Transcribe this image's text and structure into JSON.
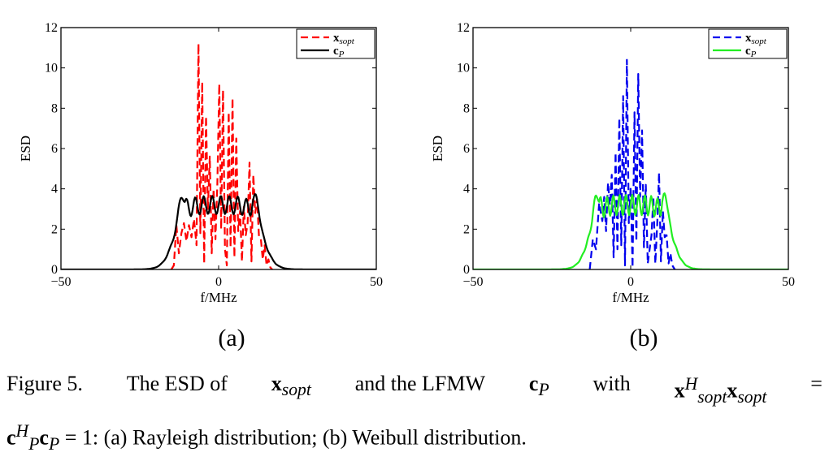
{
  "chart_data": [
    {
      "type": "line",
      "subfigure_label": "(a)",
      "xlabel": "f/MHz",
      "ylabel": "ESD",
      "xlim": [
        -50,
        50
      ],
      "ylim": [
        0,
        12
      ],
      "xticks": [
        "−50",
        "0",
        "50"
      ],
      "yticks": [
        "0",
        "2",
        "4",
        "6",
        "8",
        "10",
        "12"
      ],
      "grid": false,
      "legend_position": "top-right",
      "series": [
        {
          "name": "x_sopt",
          "legend_main": "x",
          "legend_sub": "sopt",
          "color": "#ff0000",
          "style": "dashed",
          "x": [
            -15.0,
            -14.2,
            -13.4,
            -12.6,
            -11.8,
            -11.0,
            -10.2,
            -9.4,
            -8.6,
            -7.8,
            -7.0,
            -6.4,
            -5.8,
            -5.2,
            -4.6,
            -4.0,
            -3.4,
            -2.8,
            -2.2,
            -1.6,
            -1.0,
            -0.4,
            0.2,
            0.8,
            1.4,
            2.0,
            2.6,
            3.2,
            3.8,
            4.4,
            5.0,
            5.6,
            6.2,
            6.8,
            7.4,
            8.0,
            8.6,
            9.2,
            9.8,
            10.4,
            11.0,
            11.6,
            12.2,
            12.8,
            13.4,
            14.0,
            14.6,
            15.2,
            15.8,
            16.4,
            17.0
          ],
          "values": [
            0.0,
            0.2,
            2.2,
            0.8,
            1.8,
            2.3,
            1.4,
            2.2,
            1.6,
            2.5,
            1.2,
            11.2,
            1.8,
            9.3,
            0.3,
            7.6,
            3.0,
            5.6,
            0.8,
            4.0,
            1.5,
            4.2,
            9.2,
            2.0,
            8.9,
            1.0,
            0.2,
            7.8,
            1.1,
            8.5,
            0.6,
            6.5,
            1.9,
            2.9,
            0.4,
            3.1,
            1.7,
            2.3,
            5.3,
            0.4,
            4.7,
            2.8,
            3.5,
            1.6,
            1.5,
            0.5,
            1.2,
            0.2,
            0.5,
            0.1,
            0.0
          ]
        },
        {
          "name": "c_P",
          "legend_main": "c",
          "legend_sub": "P",
          "color": "#000000",
          "style": "solid",
          "envelope": {
            "center": 0,
            "half_width": 14.2,
            "edge_sharpness": 1.7,
            "base_level": 3.2,
            "edge_peak_height": 1.35,
            "edge_peak_width": 1.3,
            "ripple_amplitude": 0.45,
            "ripple_period": 2.7
          }
        }
      ]
    },
    {
      "type": "line",
      "subfigure_label": "(b)",
      "xlabel": "f/MHz",
      "ylabel": "ESD",
      "xlim": [
        -50,
        50
      ],
      "ylim": [
        0,
        12
      ],
      "xticks": [
        "−50",
        "0",
        "50"
      ],
      "yticks": [
        "0",
        "2",
        "4",
        "6",
        "8",
        "10",
        "12"
      ],
      "grid": false,
      "legend_position": "top-right",
      "series": [
        {
          "name": "x_sopt",
          "legend_main": "x",
          "legend_sub": "sopt",
          "color": "#0000ee",
          "style": "dashed",
          "x": [
            -13.0,
            -12.0,
            -11.0,
            -10.0,
            -9.0,
            -8.4,
            -7.8,
            -7.2,
            -6.6,
            -6.0,
            -5.4,
            -4.8,
            -4.2,
            -3.6,
            -3.0,
            -2.4,
            -1.8,
            -1.2,
            -0.6,
            0.0,
            0.6,
            1.2,
            1.8,
            2.4,
            3.0,
            3.6,
            4.2,
            4.8,
            5.4,
            6.0,
            6.6,
            7.2,
            7.8,
            8.4,
            9.0,
            9.6,
            10.2,
            10.8,
            11.4,
            12.0,
            12.6,
            13.2,
            14.0
          ],
          "values": [
            0.0,
            1.5,
            1.0,
            3.3,
            2.4,
            3.6,
            1.9,
            4.3,
            3.2,
            4.7,
            0.6,
            5.8,
            1.0,
            7.5,
            1.2,
            8.6,
            0.2,
            10.4,
            2.3,
            4.1,
            0.1,
            7.8,
            1.4,
            9.7,
            3.6,
            6.9,
            1.1,
            4.2,
            0.3,
            1.0,
            1.7,
            3.6,
            0.3,
            2.2,
            4.8,
            0.4,
            2.9,
            1.6,
            1.7,
            0.3,
            0.8,
            0.2,
            0.0
          ]
        },
        {
          "name": "c_P",
          "legend_main": "c",
          "legend_sub": "P",
          "color": "#22ee22",
          "style": "solid",
          "envelope": {
            "center": 0,
            "half_width": 13.3,
            "edge_sharpness": 1.6,
            "base_level": 3.2,
            "edge_peak_height": 1.35,
            "edge_peak_width": 1.2,
            "ripple_amplitude": 0.5,
            "ripple_period": 2.0
          }
        }
      ]
    }
  ],
  "caption": {
    "figure_label": "Figure 5.",
    "text_1": "The ESD of",
    "text_2": "and the LFMW",
    "text_3": "with",
    "eq": "=",
    "eq_rhs": "= 1: (a) Rayleigh distribution; (b) Weibull distribution.",
    "x": "x",
    "c": "c",
    "sub_sopt": "sopt",
    "sub_P": "P",
    "sup_H": "H"
  }
}
